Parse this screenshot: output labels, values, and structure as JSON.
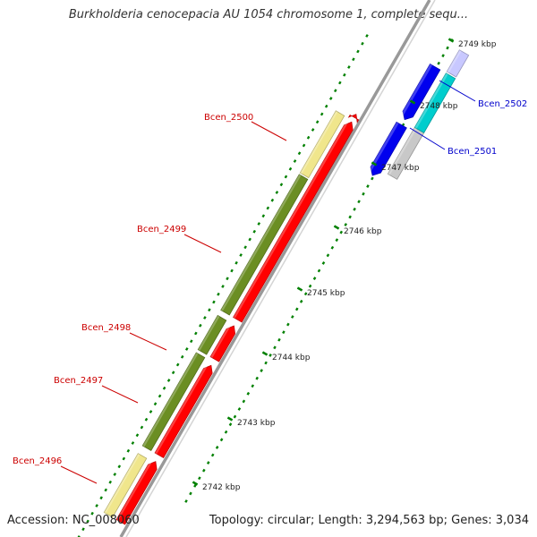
{
  "title": "Burkholderia cenocepacia AU 1054 chromosome 1, complete sequ...",
  "footer": {
    "accession": "Accession: NC_008060",
    "topology": "Topology: circular; Length: 3,294,563 bp; Genes: 3,034"
  },
  "scale_unit": "kbp",
  "ticks": [
    "2742 kbp",
    "2743 kbp",
    "2744 kbp",
    "2745 kbp",
    "2746 kbp",
    "2747 kbp",
    "2748 kbp",
    "2749 kbp"
  ],
  "genes": [
    {
      "label": "Bcen_2496",
      "strand": "forward",
      "label_color": "#cc0000"
    },
    {
      "label": "Bcen_2497",
      "strand": "forward",
      "label_color": "#cc0000"
    },
    {
      "label": "Bcen_2498",
      "strand": "forward",
      "label_color": "#cc0000"
    },
    {
      "label": "Bcen_2499",
      "strand": "forward",
      "label_color": "#cc0000"
    },
    {
      "label": "Bcen_2500",
      "strand": "forward",
      "label_color": "#cc0000"
    },
    {
      "label": "Bcen_2501",
      "strand": "reverse",
      "label_color": "#0000cc"
    },
    {
      "label": "Bcen_2502",
      "strand": "reverse",
      "label_color": "#0000cc"
    }
  ],
  "colors": {
    "forward_cds": "#ff0000",
    "reverse_cds": "#0000ee",
    "cog_olive": "#6b8e23",
    "cog_khaki": "#f0e68c",
    "cog_cyan": "#00cdcd",
    "cog_gray": "#c8c8c8",
    "backbone": "#999999",
    "tick": "#008000"
  }
}
